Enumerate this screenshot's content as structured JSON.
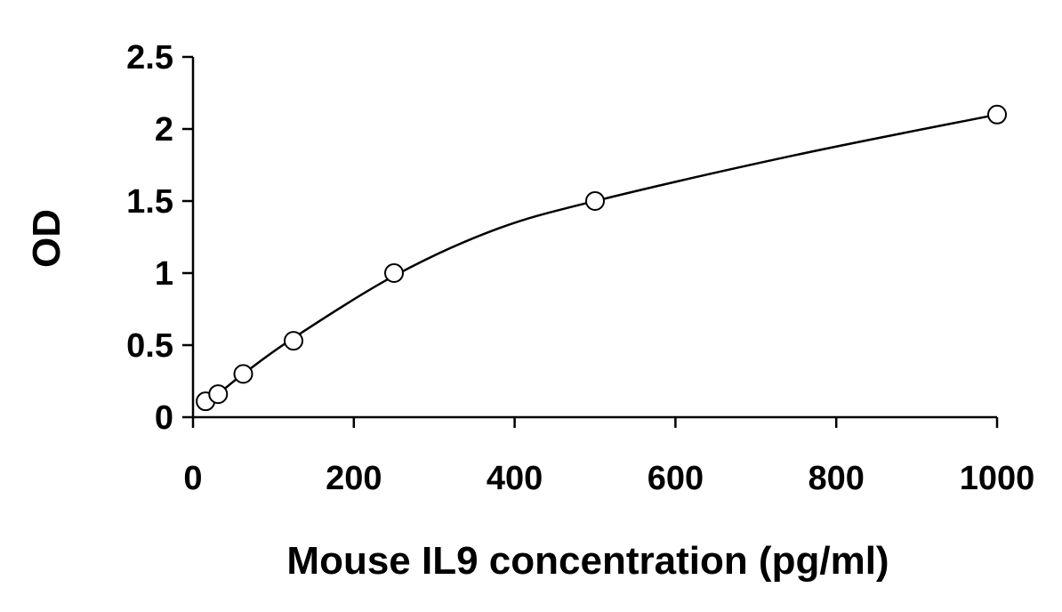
{
  "chart_data": {
    "type": "scatter",
    "title": "",
    "xlabel": "Mouse IL9 concentration (pg/ml)",
    "ylabel": "OD",
    "xlim": [
      0,
      1000
    ],
    "ylim": [
      0,
      2.5
    ],
    "x_ticks": [
      0,
      200,
      400,
      600,
      800,
      1000
    ],
    "x_tick_labels": [
      "0",
      "200",
      "400",
      "600",
      "800",
      "1000"
    ],
    "y_ticks": [
      0,
      0.5,
      1,
      1.5,
      2,
      2.5
    ],
    "y_tick_labels": [
      "0",
      "0.5",
      "1",
      "1.5",
      "2",
      "2.5"
    ],
    "grid": false,
    "legend": "none",
    "series": [
      {
        "marker": "open-circle",
        "x": [
          15.6,
          31.25,
          62.5,
          125,
          250,
          500,
          1000
        ],
        "y": [
          0.11,
          0.16,
          0.3,
          0.53,
          1.0,
          1.5,
          2.1
        ]
      }
    ],
    "fit_line": {
      "x": [
        15.6,
        31.25,
        62.5,
        125,
        250,
        375,
        500,
        750,
        1000
      ],
      "y": [
        0.09,
        0.16,
        0.3,
        0.55,
        0.98,
        1.3,
        1.5,
        1.82,
        2.1
      ]
    }
  }
}
